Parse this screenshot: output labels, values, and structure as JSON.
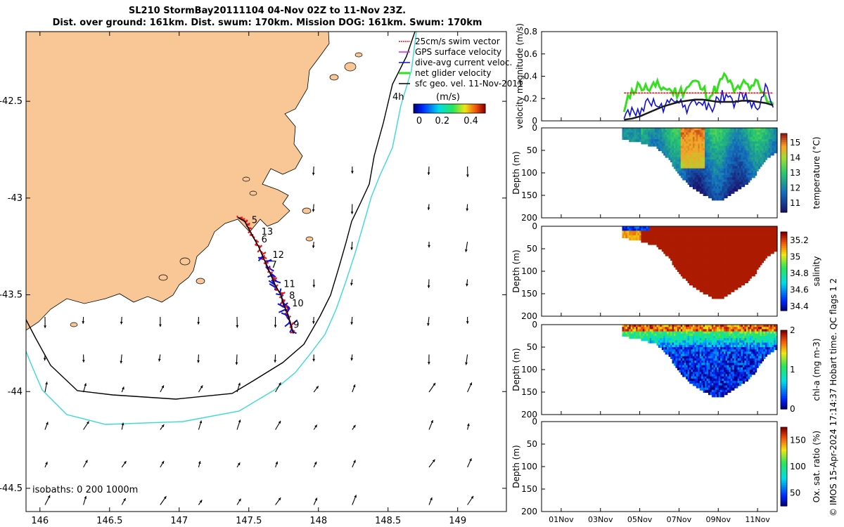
{
  "header": {
    "line1": "SL210 StormBay20111104 04-Nov 02Z to 11-Nov 23Z.",
    "line2": "Dist. over ground: 161km. Dist. swum: 170km. Mission DOG: 161km. Swum: 170km"
  },
  "footer_note": "© IMOS 15-Apr-2024 17:14:37 Hobart time. QC flags 1  2",
  "colors": {
    "land": "#f9c796",
    "track_red": "#e8141a",
    "track_blue": "#1010d8",
    "net_green": "#33e01e",
    "isobath_200": "#000000",
    "isobath_1000": "#3cd8d8"
  },
  "chart_data": [
    {
      "type": "map",
      "x_ticks": [
        "146",
        "146.5",
        "147",
        "147.5",
        "148",
        "148.5",
        "149"
      ],
      "y_ticks": [
        "-42.5",
        "-43",
        "-43.5",
        "-44",
        "-44.5"
      ],
      "xlim": [
        145.9,
        149.35
      ],
      "ylim": [
        -44.62,
        -42.14
      ],
      "legend": [
        {
          "label": "25cm/s swim vector",
          "color": "#e8141a"
        },
        {
          "label": "GPS surface velocity",
          "color": "#e020e0"
        },
        {
          "label": "dive-avg current veloc.",
          "color": "#1010d8"
        },
        {
          "label": "net glider velocity",
          "color": "#33e01e"
        },
        {
          "label": "sfc geo. vel. 11-Nov-2011",
          "color": "#000000"
        }
      ],
      "colorbar": {
        "label": "(m/s)",
        "ticks": [
          "0",
          "0.2",
          "0.4"
        ],
        "range": [
          0,
          0.5
        ]
      },
      "isobaths_label": "isobaths: 0   200  1000m",
      "time_marker": "4h",
      "day_labels": [
        {
          "t": "5",
          "lon": 147.52,
          "lat": -43.13
        },
        {
          "t": "13",
          "lon": 147.59,
          "lat": -43.19
        },
        {
          "t": "6",
          "lon": 147.59,
          "lat": -43.23
        },
        {
          "t": "12",
          "lon": 147.67,
          "lat": -43.31
        },
        {
          "t": "7",
          "lon": 147.66,
          "lat": -43.36
        },
        {
          "t": "11",
          "lon": 147.75,
          "lat": -43.46
        },
        {
          "t": "8",
          "lon": 147.79,
          "lat": -43.52
        },
        {
          "t": "10",
          "lon": 147.81,
          "lat": -43.56
        },
        {
          "t": "9",
          "lon": 147.82,
          "lat": -43.67
        }
      ],
      "glider_track": [
        [
          147.42,
          -43.1
        ],
        [
          147.47,
          -43.12
        ],
        [
          147.5,
          -43.16
        ],
        [
          147.53,
          -43.2
        ],
        [
          147.57,
          -43.25
        ],
        [
          147.6,
          -43.3
        ],
        [
          147.63,
          -43.35
        ],
        [
          147.66,
          -43.4
        ],
        [
          147.69,
          -43.45
        ],
        [
          147.73,
          -43.5
        ],
        [
          147.75,
          -43.55
        ],
        [
          147.78,
          -43.6
        ],
        [
          147.8,
          -43.65
        ],
        [
          147.82,
          -43.7
        ]
      ]
    },
    {
      "type": "line",
      "ylabel": "velocity magnitude (m/s)",
      "yticks": [
        "0",
        "0.2",
        "0.4",
        "0.6",
        "0.8"
      ],
      "ylim": [
        0,
        0.8
      ],
      "x_days": [
        4.2,
        4.6,
        5.0,
        5.4,
        5.8,
        6.2,
        6.6,
        7.0,
        7.4,
        7.8,
        8.2,
        8.6,
        9.0,
        9.4,
        9.8,
        10.2,
        10.6,
        11.0,
        11.4,
        11.8
      ],
      "series": [
        {
          "name": "net glider velocity",
          "color": "#33e01e",
          "values": [
            0.08,
            0.28,
            0.32,
            0.28,
            0.31,
            0.3,
            0.27,
            0.25,
            0.3,
            0.36,
            0.28,
            0.22,
            0.32,
            0.4,
            0.26,
            0.33,
            0.28,
            0.36,
            0.22,
            0.15
          ]
        },
        {
          "name": "dive-avg current",
          "color": "#1010d8",
          "values": [
            0.02,
            0.12,
            0.05,
            0.2,
            0.14,
            0.08,
            0.2,
            0.16,
            0.07,
            0.18,
            0.14,
            0.12,
            0.2,
            0.24,
            0.12,
            0.25,
            0.18,
            0.1,
            0.33,
            0.12
          ]
        },
        {
          "name": "swim vector",
          "color": "#e8141a",
          "values": [
            0.25,
            0.25,
            0.25,
            0.25,
            0.25,
            0.25,
            0.25,
            0.25,
            0.25,
            0.25,
            0.25,
            0.25,
            0.25,
            0.25,
            0.25,
            0.25,
            0.25,
            0.25,
            0.25,
            0.25
          ]
        },
        {
          "name": "sfc geo. vel.",
          "color": "#1a1a1a",
          "values": [
            0.01,
            0.02,
            0.04,
            0.07,
            0.1,
            0.13,
            0.15,
            0.17,
            0.18,
            0.19,
            0.19,
            0.18,
            0.17,
            0.17,
            0.17,
            0.18,
            0.18,
            0.17,
            0.16,
            0.14
          ]
        }
      ]
    },
    {
      "type": "heatmap",
      "variable": "temperature",
      "colorbar_label": "temperature (°C)",
      "cticks": [
        "11",
        "12",
        "13",
        "14",
        "15"
      ],
      "clim": [
        10.4,
        15.6
      ],
      "ylabel": "Depth (m)",
      "yticks": [
        "0",
        "50",
        "100",
        "150",
        "200"
      ],
      "ylim": [
        0,
        200
      ]
    },
    {
      "type": "heatmap",
      "variable": "salinity",
      "colorbar_label": "salinity",
      "cticks": [
        "34.4",
        "34.6",
        "34.8",
        "35",
        "35.2"
      ],
      "clim": [
        34.35,
        35.3
      ],
      "ylabel": "Depth (m)",
      "yticks": [
        "0",
        "50",
        "100",
        "150",
        "200"
      ],
      "ylim": [
        0,
        200
      ]
    },
    {
      "type": "heatmap",
      "variable": "chl-a",
      "colorbar_label": "chl-a (mg m-3)",
      "cticks": [
        "0",
        "1",
        "2"
      ],
      "clim": [
        0,
        2
      ],
      "ylabel": "Depth (m)",
      "yticks": [
        "0",
        "50",
        "100",
        "150",
        "200"
      ],
      "ylim": [
        0,
        200
      ]
    },
    {
      "type": "heatmap",
      "variable": "oxygen",
      "colorbar_label": "Ox. sat. ratio (%)",
      "cticks": [
        "50",
        "100",
        "150"
      ],
      "clim": [
        25,
        175
      ],
      "ylabel": "Depth (m)",
      "yticks": [
        "0",
        "50",
        "100",
        "150",
        "200"
      ],
      "ylim": [
        0,
        200
      ]
    }
  ],
  "time_axis": {
    "ticks": [
      "01Nov",
      "03Nov",
      "05Nov",
      "07Nov",
      "09Nov",
      "11Nov"
    ],
    "tick_days": [
      1,
      3,
      5,
      7,
      9,
      11
    ],
    "xlim": [
      0,
      12
    ],
    "data_start_day": 4.1,
    "data_end_day": 12
  },
  "bottom_profile": {
    "days": [
      4.1,
      5.0,
      5.8,
      6.5,
      7.0,
      7.6,
      8.2,
      8.8,
      9.2,
      9.8,
      10.3,
      10.8,
      11.3,
      11.9
    ],
    "depth_m": [
      22,
      30,
      40,
      70,
      105,
      128,
      145,
      158,
      157,
      140,
      125,
      105,
      70,
      50
    ]
  }
}
